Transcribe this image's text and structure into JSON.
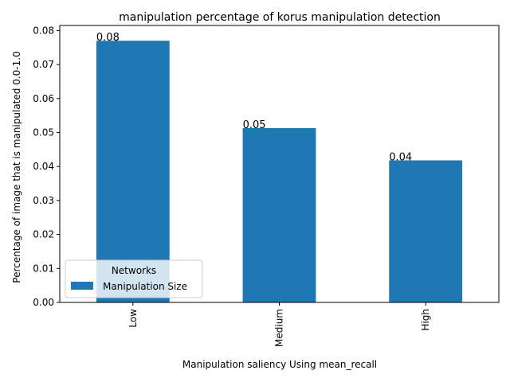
{
  "chart_data": {
    "type": "bar",
    "title": "manipulation percentage of korus manipulation detection",
    "xlabel": "Manipulation saliency Using mean_recall",
    "ylabel": "Percentage of image that is manipulated 0.0-1.0",
    "categories": [
      "Low",
      "Medium",
      "High"
    ],
    "series": [
      {
        "name": "Manipulation Size",
        "values": [
          0.077,
          0.0513,
          0.0418
        ],
        "color": "#1f77b4"
      }
    ],
    "data_labels": [
      "0.08",
      "0.05",
      "0.04"
    ],
    "ylim": [
      0,
      0.0815
    ],
    "yticks": [
      0.0,
      0.01,
      0.02,
      0.03,
      0.04,
      0.05,
      0.06,
      0.07,
      0.08
    ],
    "ytick_labels": [
      "0.00",
      "0.01",
      "0.02",
      "0.03",
      "0.04",
      "0.05",
      "0.06",
      "0.07",
      "0.08"
    ],
    "legend": {
      "title": "Networks",
      "placement": "lower-left"
    },
    "grid": false
  }
}
